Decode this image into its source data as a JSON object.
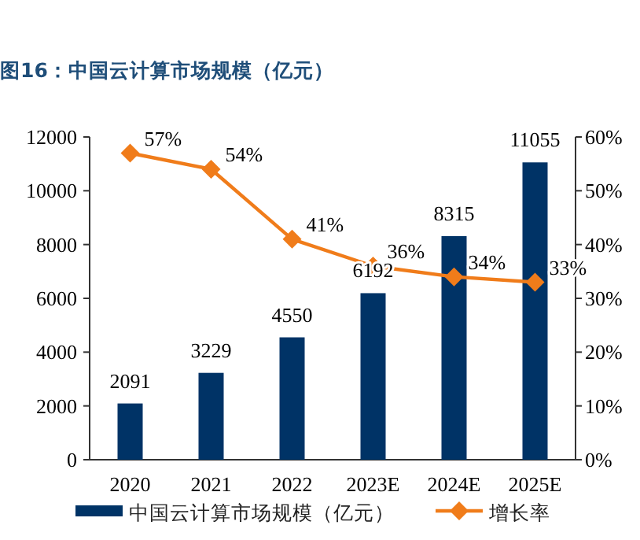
{
  "chart_data": {
    "type": "bar",
    "title": "图16：中国云计算市场规模（亿元）",
    "categories": [
      "2020",
      "2021",
      "2022",
      "2023E",
      "2024E",
      "2025E"
    ],
    "series": [
      {
        "name": "中国云计算市场规模（亿元）",
        "color": "#003366",
        "values": [
          2091,
          3229,
          4550,
          6192,
          8315,
          11055
        ],
        "value_labels": [
          "2091",
          "3229",
          "4550",
          "6192",
          "8315",
          "11055"
        ]
      },
      {
        "name": "增长率",
        "type": "line",
        "axis": "y2",
        "color": "#f07c1a",
        "values": [
          57,
          54,
          41,
          36,
          34,
          33
        ],
        "value_labels": [
          "57%",
          "54%",
          "41%",
          "36%",
          "34%",
          "33%"
        ]
      }
    ],
    "ylim": [
      0,
      12000
    ],
    "yticks": [
      0,
      2000,
      4000,
      6000,
      8000,
      10000,
      12000
    ],
    "y2lim": [
      0,
      60
    ],
    "y2ticks": [
      {
        "value": 0,
        "label": "0%"
      },
      {
        "value": 10,
        "label": "10%"
      },
      {
        "value": 20,
        "label": "20%"
      },
      {
        "value": 30,
        "label": "30%"
      },
      {
        "value": 40,
        "label": "40%"
      },
      {
        "value": 50,
        "label": "50%"
      },
      {
        "value": 60,
        "label": "60%"
      }
    ],
    "marker": "diamond",
    "legend": "bottom",
    "grid": false
  }
}
